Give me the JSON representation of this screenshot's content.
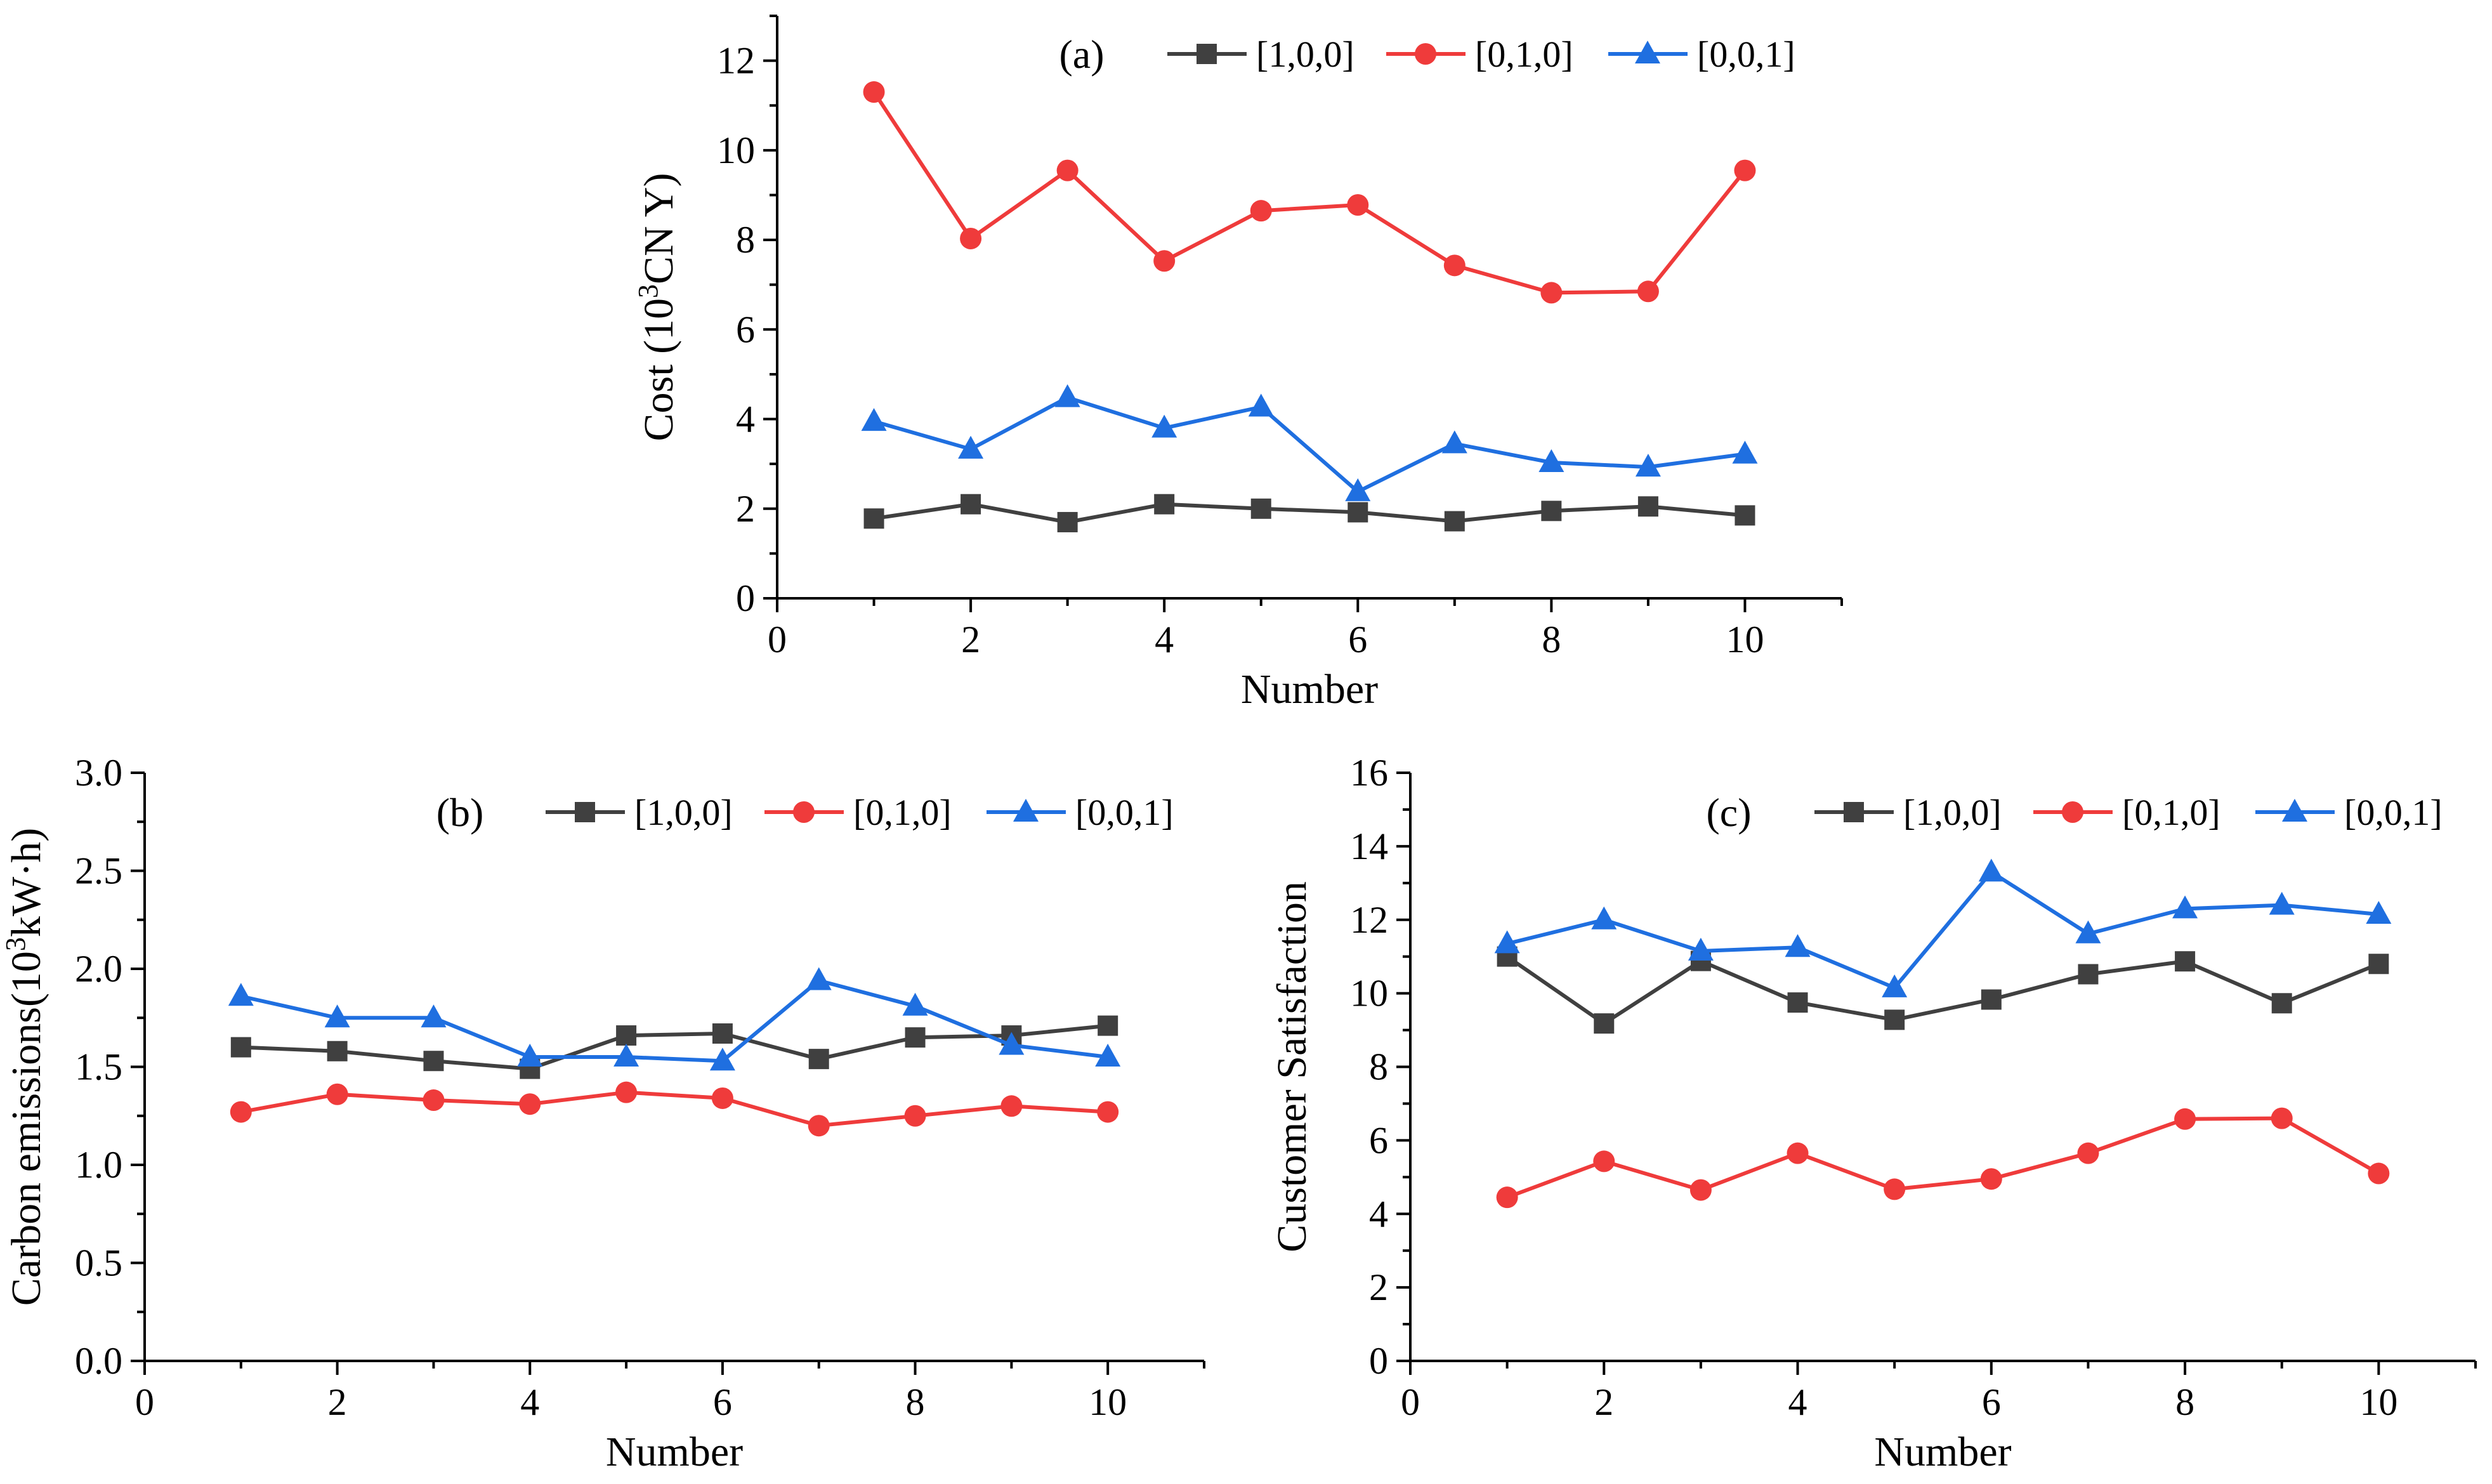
{
  "colors": {
    "s100": "#404040",
    "s010": "#ef3b3b",
    "s001": "#1f6fe0"
  },
  "chart_data": [
    {
      "type": "line",
      "panel_label": "(a)",
      "title": "",
      "xlabel": "Number",
      "ylabel_prefix": "Cost (10",
      "ylabel_sup": "3",
      "ylabel_suffix": "CN Y)",
      "xlim": [
        0,
        11
      ],
      "ylim": [
        0,
        13
      ],
      "xticks": [
        0,
        2,
        4,
        6,
        8,
        10
      ],
      "yticks": [
        0,
        2,
        4,
        6,
        8,
        10,
        12
      ],
      "x": [
        1,
        2,
        3,
        4,
        5,
        6,
        7,
        8,
        9,
        10
      ],
      "series": [
        {
          "name": "[1,0,0]",
          "marker": "square",
          "color_key": "s100",
          "values": [
            1.78,
            2.1,
            1.7,
            2.1,
            2.0,
            1.92,
            1.72,
            1.95,
            2.05,
            1.85
          ]
        },
        {
          "name": "[0,1,0]",
          "marker": "circle",
          "color_key": "s010",
          "values": [
            11.3,
            8.03,
            9.55,
            7.53,
            8.65,
            8.78,
            7.43,
            6.82,
            6.85,
            9.55
          ]
        },
        {
          "name": "[0,0,1]",
          "marker": "triangle",
          "color_key": "s001",
          "values": [
            3.95,
            3.33,
            4.48,
            3.8,
            4.27,
            2.38,
            3.45,
            3.03,
            2.93,
            3.22
          ]
        }
      ]
    },
    {
      "type": "line",
      "panel_label": "(b)",
      "title": "",
      "xlabel": "Number",
      "ylabel_prefix": "Carbon emissions(10",
      "ylabel_sup": "3",
      "ylabel_suffix": "kW·h)",
      "xlim": [
        0,
        11
      ],
      "ylim": [
        0,
        3.0
      ],
      "xticks": [
        0,
        2,
        4,
        6,
        8,
        10
      ],
      "yticks": [
        0.0,
        0.5,
        1.0,
        1.5,
        2.0,
        2.5,
        3.0
      ],
      "ytick_decimals": 1,
      "x": [
        1,
        2,
        3,
        4,
        5,
        6,
        7,
        8,
        9,
        10
      ],
      "series": [
        {
          "name": "[1,0,0]",
          "marker": "square",
          "color_key": "s100",
          "values": [
            1.6,
            1.58,
            1.53,
            1.49,
            1.66,
            1.67,
            1.54,
            1.65,
            1.66,
            1.71
          ]
        },
        {
          "name": "[0,1,0]",
          "marker": "circle",
          "color_key": "s010",
          "values": [
            1.27,
            1.36,
            1.33,
            1.31,
            1.37,
            1.34,
            1.2,
            1.25,
            1.3,
            1.27
          ]
        },
        {
          "name": "[0,0,1]",
          "marker": "triangle",
          "color_key": "s001",
          "values": [
            1.86,
            1.75,
            1.75,
            1.55,
            1.55,
            1.53,
            1.94,
            1.81,
            1.61,
            1.55
          ]
        }
      ]
    },
    {
      "type": "line",
      "panel_label": "(c)",
      "title": "",
      "xlabel": "Number",
      "ylabel_prefix": "Customer Satisfaction",
      "ylabel_sup": "",
      "ylabel_suffix": "",
      "xlim": [
        0,
        11
      ],
      "ylim": [
        0,
        16
      ],
      "xticks": [
        0,
        2,
        4,
        6,
        8,
        10
      ],
      "yticks": [
        0,
        2,
        4,
        6,
        8,
        10,
        12,
        14,
        16
      ],
      "x": [
        1,
        2,
        3,
        4,
        5,
        6,
        7,
        8,
        9,
        10
      ],
      "series": [
        {
          "name": "[1,0,0]",
          "marker": "square",
          "color_key": "s100",
          "values": [
            11.0,
            9.18,
            10.88,
            9.75,
            9.28,
            9.83,
            10.52,
            10.87,
            9.73,
            10.8
          ]
        },
        {
          "name": "[0,1,0]",
          "marker": "circle",
          "color_key": "s010",
          "values": [
            4.45,
            5.43,
            4.65,
            5.65,
            4.67,
            4.95,
            5.65,
            6.58,
            6.6,
            5.1
          ]
        },
        {
          "name": "[0,0,1]",
          "marker": "triangle",
          "color_key": "s001",
          "values": [
            11.35,
            12.0,
            11.15,
            11.25,
            10.15,
            13.3,
            11.62,
            12.3,
            12.4,
            12.15
          ]
        }
      ]
    }
  ]
}
